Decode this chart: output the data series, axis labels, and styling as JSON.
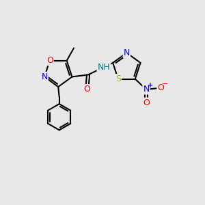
{
  "bg_color": "#e8e8e8",
  "bond_color": "#000000",
  "bond_width": 1.5,
  "atom_colors": {
    "O": "#ff0000",
    "N": "#0000ff",
    "S": "#b8b800",
    "C": "#000000",
    "H": "#008080"
  },
  "font_size": 9
}
